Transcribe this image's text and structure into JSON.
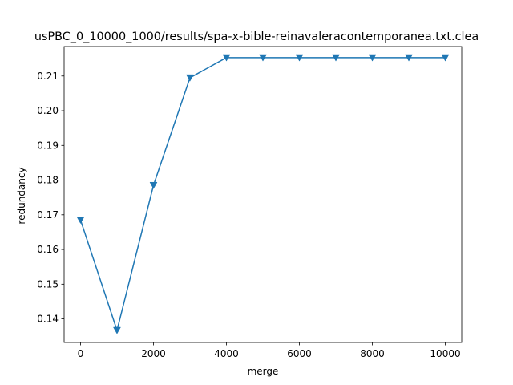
{
  "chart_data": {
    "type": "line",
    "title": "usPBC_0_10000_1000/results/spa-x-bible-reinavaleracontemporanea.txt.clea",
    "xlabel": "merge",
    "ylabel": "redundancy",
    "xlim": [
      -450,
      10450
    ],
    "ylim": [
      0.1332,
      0.2185
    ],
    "xticks": [
      0,
      2000,
      4000,
      6000,
      8000,
      10000
    ],
    "yticks": [
      0.14,
      0.15,
      0.16,
      0.17,
      0.18,
      0.19,
      0.2,
      0.21
    ],
    "ytick_labels": [
      "0.14",
      "0.15",
      "0.16",
      "0.17",
      "0.18",
      "0.19",
      "0.20",
      "0.21"
    ],
    "grid": false,
    "marker": "triangle-down",
    "series": [
      {
        "color": "#1f77b4",
        "x": [
          0,
          1000,
          2000,
          3000,
          4000,
          5000,
          6000,
          7000,
          8000,
          9000,
          10000
        ],
        "y": [
          0.1685,
          0.1367,
          0.1785,
          0.2095,
          0.2153,
          0.2153,
          0.2153,
          0.2153,
          0.2153,
          0.2153,
          0.2153
        ]
      }
    ]
  }
}
